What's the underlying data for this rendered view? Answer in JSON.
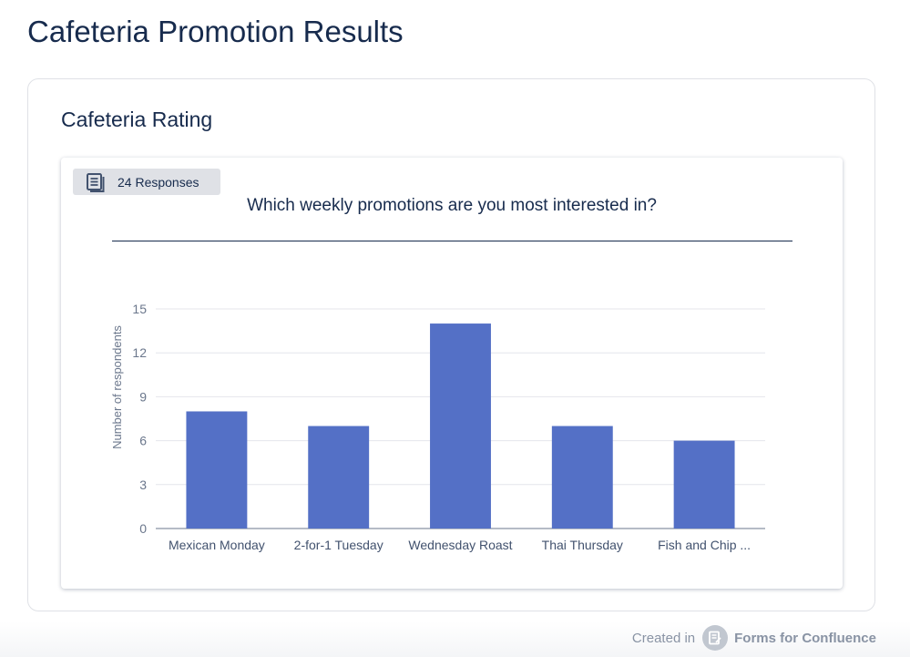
{
  "page": {
    "title": "Cafeteria Promotion Results"
  },
  "section": {
    "title": "Cafeteria Rating"
  },
  "badge": {
    "icon": "document-list-icon",
    "label": "24 Responses"
  },
  "footer": {
    "created_in": "Created in",
    "brand": "Forms for Confluence",
    "logo_icon": "forms-logo-icon"
  },
  "chart_data": {
    "type": "bar",
    "title": "Which weekly promotions are you most interested in?",
    "xlabel": "",
    "ylabel": "Number of respondents",
    "categories": [
      "Mexican Monday",
      "2-for-1 Tuesday",
      "Wednesday Roast",
      "Thai Thursday",
      "Fish and Chip ..."
    ],
    "values": [
      8,
      7,
      14,
      7,
      6
    ],
    "ylim": [
      0,
      15
    ],
    "yticks": [
      0,
      3,
      6,
      9,
      12,
      15
    ],
    "grid": true,
    "legend": "none",
    "bar_color": "#5470c6"
  }
}
